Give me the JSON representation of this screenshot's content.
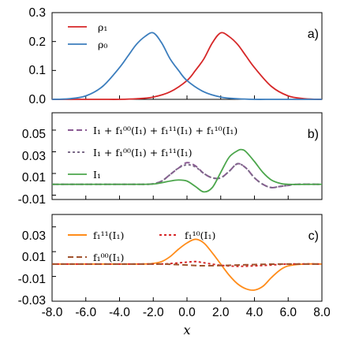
{
  "colors": {
    "rho1": "#d62728",
    "rho0": "#3b7dbd",
    "full": "#8a5a93",
    "partial": "#7b6a88",
    "I1": "#4ca64c",
    "f11": "#ff8c1a",
    "f10": "#d62728",
    "f00": "#a0522d"
  },
  "x_axis": {
    "label": "x",
    "range": [
      -8,
      8
    ],
    "ticks": [
      -8,
      -6,
      -4,
      -2,
      0,
      2,
      4,
      6,
      8
    ],
    "tick_labels": [
      "-8.0",
      "-6.0",
      "-4.0",
      "-2.0",
      "0.0",
      "2.0",
      "4.0",
      "6.0",
      "8.0"
    ]
  },
  "chart_data": [
    {
      "type": "line",
      "panel_label": "a)",
      "ylim": [
        0,
        0.3
      ],
      "yticks": [
        0.0,
        0.1,
        0.2,
        0.3
      ],
      "ytick_labels": [
        "0.0",
        "0.1",
        "0.2",
        "0.3"
      ],
      "legend": "top-left",
      "series": [
        {
          "name": "ρ₁",
          "color": "#d62728",
          "dash": "solid",
          "x": [
            -8,
            -7,
            -6,
            -5,
            -4,
            -3,
            -2,
            -1,
            0,
            0.5,
            1,
            1.5,
            2,
            2.5,
            3,
            3.5,
            4,
            5,
            6,
            7,
            8
          ],
          "y": [
            0.0,
            0.0,
            0.0,
            0.0,
            0.0,
            0.002,
            0.008,
            0.026,
            0.065,
            0.1,
            0.14,
            0.195,
            0.23,
            0.217,
            0.19,
            0.15,
            0.11,
            0.045,
            0.012,
            0.002,
            0.0
          ]
        },
        {
          "name": "ρ₀",
          "color": "#3b7dbd",
          "dash": "solid",
          "x": [
            -8,
            -7,
            -6,
            -5,
            -4,
            -3.5,
            -3,
            -2.5,
            -2,
            -1.5,
            -1,
            -0.5,
            0,
            1,
            2,
            3,
            4,
            5,
            6,
            7,
            8
          ],
          "y": [
            0.0,
            0.002,
            0.012,
            0.045,
            0.11,
            0.15,
            0.19,
            0.217,
            0.23,
            0.195,
            0.14,
            0.1,
            0.065,
            0.026,
            0.008,
            0.002,
            0.0,
            0.0,
            0.0,
            0.0,
            0.0
          ]
        }
      ]
    },
    {
      "type": "line",
      "panel_label": "b)",
      "ylim": [
        -0.014,
        0.066
      ],
      "yticks": [
        -0.01,
        0.01,
        0.03,
        0.05
      ],
      "ytick_labels": [
        "-0.01",
        "0.01",
        "0.03",
        "0.05"
      ],
      "legend": "top-left",
      "series": [
        {
          "name": "I₁ + f₁⁰⁰(I₁) + f₁¹¹(I₁) + f₁¹⁰(I₁)",
          "color": "#8a5a93",
          "dash": "long-dash",
          "x": [
            -8,
            -4,
            -2.5,
            -2,
            -1.5,
            -1,
            -0.5,
            0,
            0.5,
            1,
            1.5,
            2,
            2.5,
            3,
            3.5,
            4,
            4.5,
            5,
            5.5,
            6,
            6.5,
            8
          ],
          "y": [
            0.0,
            0.0,
            0.0,
            0.0005,
            0.003,
            0.009,
            0.015,
            0.02,
            0.017,
            0.01,
            0.006,
            0.006,
            0.012,
            0.019,
            0.015,
            0.006,
            0.0,
            -0.003,
            -0.002,
            -0.001,
            0.0,
            0.0
          ]
        },
        {
          "name": "I₁ + f₁⁰⁰(I₁) + f₁¹¹(I₁)",
          "color": "#7b6a88",
          "dash": "short-dash",
          "x": [
            -8,
            -4,
            -2.5,
            -2,
            -1.5,
            -1,
            -0.5,
            0,
            0.5,
            1,
            1.5,
            2,
            2.5,
            3,
            3.5,
            4,
            4.5,
            5,
            5.5,
            6,
            6.5,
            8
          ],
          "y": [
            0.0,
            0.0,
            0.0,
            0.0005,
            0.003,
            0.009,
            0.015,
            0.018,
            0.016,
            0.01,
            0.006,
            0.006,
            0.012,
            0.019,
            0.015,
            0.006,
            0.0,
            -0.003,
            -0.002,
            -0.001,
            0.0,
            0.0
          ]
        },
        {
          "name": "I₁",
          "color": "#4ca64c",
          "dash": "solid",
          "x": [
            -8,
            -4,
            -3,
            -2,
            -1.5,
            -1,
            -0.5,
            0,
            0.5,
            1,
            1.5,
            2,
            2.5,
            3,
            3.25,
            3.5,
            4,
            4.5,
            5,
            5.5,
            6,
            8
          ],
          "y": [
            0.0,
            0.0,
            0.0,
            0.0003,
            0.0015,
            0.003,
            0.004,
            0.003,
            -0.002,
            -0.007,
            -0.003,
            0.011,
            0.025,
            0.031,
            0.032,
            0.03,
            0.021,
            0.011,
            0.004,
            0.001,
            0.0,
            0.0
          ]
        }
      ]
    },
    {
      "type": "line",
      "panel_label": "c)",
      "ylim": [
        -0.03,
        0.04
      ],
      "yticks": [
        -0.03,
        -0.01,
        0.01,
        0.03
      ],
      "ytick_labels": [
        "-0.03",
        "-0.01",
        "0.01",
        "0.03"
      ],
      "legend": "top-left",
      "series": [
        {
          "name": "f₁¹¹(I₁)",
          "color": "#ff8c1a",
          "dash": "solid",
          "x": [
            -8,
            -3,
            -2,
            -1.5,
            -1,
            -0.5,
            0,
            0.5,
            1,
            1.5,
            2,
            2.5,
            3,
            3.5,
            4,
            4.5,
            5,
            5.5,
            6,
            7,
            8
          ],
          "y": [
            0.0,
            0.0,
            0.0005,
            0.002,
            0.006,
            0.012,
            0.017,
            0.02,
            0.017,
            0.009,
            0.0,
            -0.009,
            -0.016,
            -0.02,
            -0.021,
            -0.018,
            -0.011,
            -0.005,
            -0.0015,
            0.0,
            0.0
          ]
        },
        {
          "name": "f₁¹⁰(I₁)",
          "color": "#d62728",
          "dash": "short-dash",
          "x": [
            -8,
            -2,
            -1,
            0,
            0.5,
            1,
            2,
            3,
            4,
            5,
            6,
            8
          ],
          "y": [
            0.0,
            0.0,
            0.0004,
            0.0015,
            0.002,
            0.001,
            -0.001,
            -0.0018,
            -0.0015,
            -0.0008,
            0.0,
            0.0
          ]
        },
        {
          "name": "f₁⁰⁰(I₁)",
          "color": "#a0522d",
          "dash": "long-dash",
          "x": [
            -8,
            -2,
            -1,
            0,
            0.5,
            1,
            2,
            3,
            4,
            5,
            6,
            8
          ],
          "y": [
            0.0,
            0.0,
            -0.0002,
            -0.0008,
            -0.0012,
            -0.0014,
            -0.0012,
            -0.0008,
            -0.0004,
            -0.0001,
            0.0,
            0.0
          ]
        }
      ]
    }
  ]
}
